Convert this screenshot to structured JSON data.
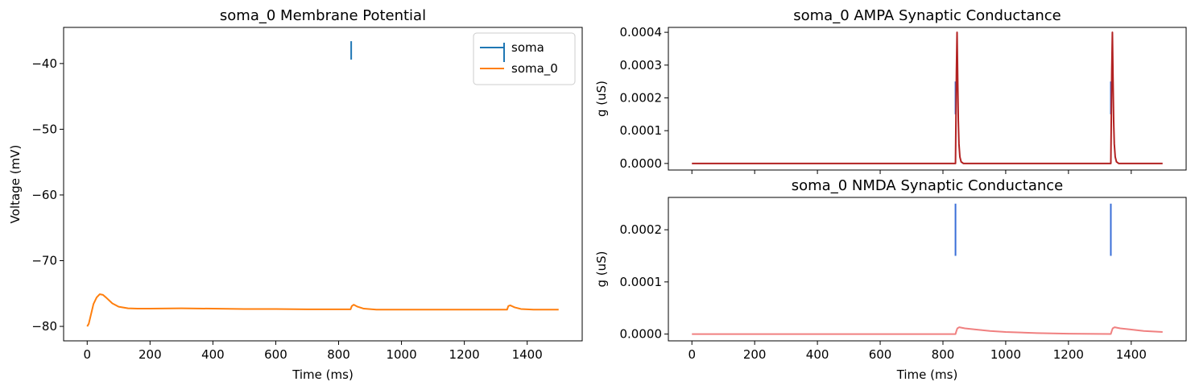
{
  "chart_data": [
    {
      "type": "line",
      "title": "soma_0 Membrane Potential",
      "xlabel": "Time (ms)",
      "ylabel": "Voltage (mV)",
      "xlim": [
        -75,
        1575
      ],
      "ylim": [
        -82.2,
        -34.5
      ],
      "xticks": [
        0,
        200,
        400,
        600,
        800,
        1000,
        1200,
        1400
      ],
      "yticks": [
        -80,
        -70,
        -60,
        -50,
        -40
      ],
      "legend": "top-right",
      "series": [
        {
          "name": "soma",
          "kind": "eventplot",
          "color": "#1f77b4",
          "events": [
            {
              "x": 840,
              "y0": -39.4,
              "y1": -36.6
            }
          ]
        },
        {
          "name": "soma_0",
          "kind": "line",
          "color": "#ff7f0e",
          "points": [
            [
              0,
              -80
            ],
            [
              5,
              -79.6
            ],
            [
              10,
              -78.6
            ],
            [
              15,
              -77.6
            ],
            [
              20,
              -76.6
            ],
            [
              30,
              -75.6
            ],
            [
              40,
              -75.1
            ],
            [
              50,
              -75.2
            ],
            [
              60,
              -75.6
            ],
            [
              80,
              -76.5
            ],
            [
              100,
              -77.0
            ],
            [
              130,
              -77.25
            ],
            [
              160,
              -77.3
            ],
            [
              200,
              -77.3
            ],
            [
              300,
              -77.25
            ],
            [
              400,
              -77.3
            ],
            [
              500,
              -77.35
            ],
            [
              600,
              -77.35
            ],
            [
              700,
              -77.4
            ],
            [
              800,
              -77.4
            ],
            [
              838,
              -77.4
            ],
            [
              842,
              -76.9
            ],
            [
              848,
              -76.7
            ],
            [
              860,
              -77.0
            ],
            [
              880,
              -77.3
            ],
            [
              920,
              -77.45
            ],
            [
              1000,
              -77.45
            ],
            [
              1100,
              -77.45
            ],
            [
              1200,
              -77.45
            ],
            [
              1300,
              -77.45
            ],
            [
              1336,
              -77.45
            ],
            [
              1340,
              -76.9
            ],
            [
              1346,
              -76.8
            ],
            [
              1360,
              -77.1
            ],
            [
              1380,
              -77.35
            ],
            [
              1420,
              -77.45
            ],
            [
              1500,
              -77.45
            ]
          ]
        }
      ]
    },
    {
      "type": "line",
      "title": "soma_0 AMPA Synaptic Conductance",
      "xlabel": "",
      "ylabel": "g (uS)",
      "xlim": [
        -75,
        1575
      ],
      "ylim": [
        -2e-05,
        0.000415
      ],
      "yticks": [
        0,
        0.0001,
        0.0002,
        0.0003,
        0.0004
      ],
      "ytick_labels": [
        "0.0000",
        "0.0001",
        "0.0002",
        "0.0003",
        "0.0004"
      ],
      "series": [
        {
          "name": "",
          "kind": "eventplot",
          "color": "#3a6fd8",
          "events": [
            {
              "x": 840,
              "y0": 0.00015,
              "y1": 0.00025
            },
            {
              "x": 1335,
              "y0": 0.00015,
              "y1": 0.00025
            }
          ]
        },
        {
          "name": "",
          "kind": "line",
          "color": "#b22222",
          "points": [
            [
              0,
              0
            ],
            [
              840,
              0
            ],
            [
              843,
              0.00028
            ],
            [
              845,
              0.0004
            ],
            [
              847,
              0.00026
            ],
            [
              849,
              0.00013
            ],
            [
              851,
              6e-05
            ],
            [
              854,
              2e-05
            ],
            [
              858,
              5e-06
            ],
            [
              865,
              0
            ],
            [
              1335,
              0
            ],
            [
              1338,
              0.00028
            ],
            [
              1340,
              0.0004
            ],
            [
              1342,
              0.00026
            ],
            [
              1344,
              0.00013
            ],
            [
              1346,
              6e-05
            ],
            [
              1349,
              2e-05
            ],
            [
              1353,
              5e-06
            ],
            [
              1360,
              0
            ],
            [
              1500,
              0
            ]
          ]
        }
      ]
    },
    {
      "type": "line",
      "title": "soma_0 NMDA Synaptic Conductance",
      "xlabel": "Time (ms)",
      "ylabel": "g (uS)",
      "xlim": [
        -75,
        1575
      ],
      "ylim": [
        -1.3e-05,
        0.000262
      ],
      "xticks": [
        0,
        200,
        400,
        600,
        800,
        1000,
        1200,
        1400
      ],
      "yticks": [
        0,
        0.0001,
        0.0002
      ],
      "ytick_labels": [
        "0.0000",
        "0.0001",
        "0.0002"
      ],
      "series": [
        {
          "name": "",
          "kind": "eventplot",
          "color": "#3a6fd8",
          "events": [
            {
              "x": 840,
              "y0": 0.00015,
              "y1": 0.00025
            },
            {
              "x": 1335,
              "y0": 0.00015,
              "y1": 0.00025
            }
          ]
        },
        {
          "name": "",
          "kind": "line",
          "color": "#f08080",
          "points": [
            [
              0,
              0
            ],
            [
              840,
              0
            ],
            [
              843,
              6e-06
            ],
            [
              846,
              1.1e-05
            ],
            [
              852,
              1.3e-05
            ],
            [
              870,
              1.1e-05
            ],
            [
              900,
              9e-06
            ],
            [
              950,
              6e-06
            ],
            [
              1000,
              4e-06
            ],
            [
              1100,
              1.8e-06
            ],
            [
              1200,
              8e-07
            ],
            [
              1335,
              2e-07
            ],
            [
              1338,
              6e-06
            ],
            [
              1341,
              1.1e-05
            ],
            [
              1347,
              1.3e-05
            ],
            [
              1365,
              1.1e-05
            ],
            [
              1395,
              9e-06
            ],
            [
              1440,
              6e-06
            ],
            [
              1500,
              4e-06
            ]
          ]
        }
      ]
    }
  ]
}
